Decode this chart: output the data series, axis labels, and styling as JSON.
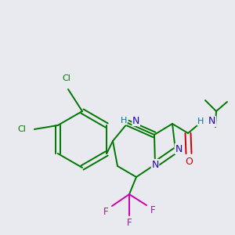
{
  "background_color": "#e8eaf0",
  "bond_color": "#007700",
  "atom_colors": {
    "Cl": "#007700",
    "N": "#2200cc",
    "H": "#007788",
    "O": "#cc0000",
    "F": "#cc00aa",
    "C": "#007700"
  },
  "figsize": [
    3.0,
    3.0
  ],
  "dpi": 100,
  "lw": 1.4
}
